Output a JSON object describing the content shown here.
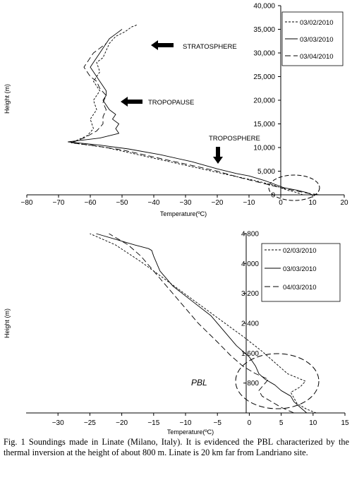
{
  "caption": "Fig. 1 Soundings made in Linate (Milano, Italy). It is evidenced the PBL characterized by the thermal inversion at the height of about 800 m. Linate is 20 km far from Landriano site.",
  "chart_data": [
    {
      "type": "line",
      "xlabel": "Temperature(ºC)",
      "ylabel": "Height (m)",
      "xlim": [
        -80,
        20
      ],
      "ylim": [
        0,
        40000
      ],
      "xticks": [
        "−80",
        "−70",
        "−60",
        "−50",
        "−40",
        "−30",
        "−20",
        "−10",
        "0",
        "10",
        "20"
      ],
      "yticks": [
        "0",
        "5,000",
        "10,000",
        "15,000",
        "20,000",
        "25,000",
        "30,000",
        "35,000",
        "40,000"
      ],
      "legend_position": "top-right",
      "annotations": [
        "STRATOSPHERE",
        "TROPOPAUSE",
        "TROPOSPHERE"
      ],
      "series": [
        {
          "name": "03/02/2010",
          "dash": "short",
          "x": [
            7,
            5,
            2,
            -2,
            -8,
            -15,
            -25,
            -35,
            -45,
            -55,
            -66,
            -61,
            -59,
            -60,
            -58,
            -59,
            -57,
            -59,
            -57,
            -58,
            -56,
            -55,
            -54,
            -52,
            -49,
            -47,
            -45
          ],
          "y": [
            0,
            500,
            1000,
            2000,
            3000,
            4000,
            5500,
            7000,
            8500,
            10000,
            11000,
            12500,
            14000,
            16000,
            18000,
            20000,
            22000,
            24000,
            26000,
            28000,
            29000,
            30500,
            32000,
            33500,
            34500,
            35500,
            36000
          ]
        },
        {
          "name": "03/03/2010",
          "dash": "solid",
          "x": [
            10,
            8,
            5,
            1,
            -5,
            -10,
            -14,
            -20,
            -28,
            -38,
            -48,
            -57,
            -67,
            -57,
            -51,
            -52,
            -51,
            -53,
            -52,
            -54,
            -55,
            -56,
            -55,
            -55,
            -56,
            -57,
            -58,
            -59,
            -60,
            -59,
            -58,
            -57,
            -56,
            -55,
            -54,
            -52,
            -50
          ],
          "y": [
            0,
            500,
            1000,
            1500,
            3000,
            4000,
            4500,
            5500,
            7000,
            8500,
            9700,
            10500,
            11200,
            12000,
            13000,
            14000,
            15000,
            16000,
            17000,
            18000,
            19000,
            20000,
            21000,
            22000,
            23000,
            24000,
            25000,
            26000,
            27000,
            28000,
            29000,
            30000,
            31000,
            32000,
            33000,
            34000,
            35000
          ]
        },
        {
          "name": "03/04/2010",
          "dash": "long",
          "x": [
            12,
            8,
            5,
            0,
            -6,
            -12,
            -20,
            -30,
            -40,
            -50,
            -60,
            -66,
            -62,
            -58,
            -56,
            -56,
            -55,
            -56,
            -55,
            -57,
            -58,
            -60,
            -61,
            -62,
            -61,
            -60,
            -59,
            -58,
            -57,
            -56,
            -55
          ],
          "y": [
            0,
            400,
            800,
            1500,
            2500,
            3500,
            5000,
            6500,
            8000,
            9500,
            10500,
            11000,
            12000,
            13500,
            15000,
            16500,
            18000,
            19500,
            21000,
            22500,
            24000,
            25000,
            26000,
            27000,
            28000,
            29000,
            30000,
            30500,
            31000,
            31500,
            32000
          ]
        }
      ]
    },
    {
      "type": "line",
      "xlabel": "Temperature(ºC)",
      "ylabel": "Height (m)",
      "xlim": [
        -35,
        15
      ],
      "ylim": [
        0,
        4800
      ],
      "xticks": [
        "−30",
        "−25",
        "−20",
        "−15",
        "−10",
        "−5",
        "0",
        "5",
        "10",
        "15"
      ],
      "yticks": [
        "800",
        "1,600",
        "2,400",
        "3,200",
        "4,000",
        "4,800"
      ],
      "legend_position": "top-right",
      "annotations": [
        "PBL"
      ],
      "series": [
        {
          "name": "02/03/2010",
          "dash": "short",
          "x": [
            10.5,
            9,
            7.5,
            7,
            6.5,
            8,
            8.8,
            6,
            4,
            2,
            -1,
            -5,
            -9,
            -13,
            -17,
            -21,
            -25
          ],
          "y": [
            0,
            100,
            250,
            400,
            550,
            700,
            850,
            1050,
            1350,
            1650,
            2050,
            2550,
            3050,
            3550,
            4050,
            4500,
            4800
          ]
        },
        {
          "name": "03/03/2010",
          "dash": "solid",
          "x": [
            9,
            8,
            7,
            6.5,
            5,
            4,
            2.5,
            1.5,
            1,
            0,
            -2,
            -4,
            -6,
            -9,
            -12,
            -14,
            -15,
            -15.3,
            -15.8,
            -18,
            -21,
            -24
          ],
          "y": [
            0,
            150,
            300,
            450,
            600,
            750,
            900,
            1050,
            1250,
            1500,
            1800,
            2200,
            2600,
            3000,
            3400,
            3800,
            4200,
            4350,
            4400,
            4500,
            4650,
            4800
          ]
        },
        {
          "name": "04/03/2010",
          "dash": "long",
          "x": [
            7,
            5,
            3.5,
            2,
            1.5,
            2,
            2.5,
            3,
            1,
            -1,
            -3,
            -5,
            -8,
            -11,
            -14,
            -17,
            -19,
            -22
          ],
          "y": [
            0,
            150,
            300,
            450,
            600,
            700,
            800,
            900,
            1050,
            1250,
            1550,
            1900,
            2400,
            3000,
            3600,
            4200,
            4500,
            4800
          ]
        }
      ]
    }
  ]
}
